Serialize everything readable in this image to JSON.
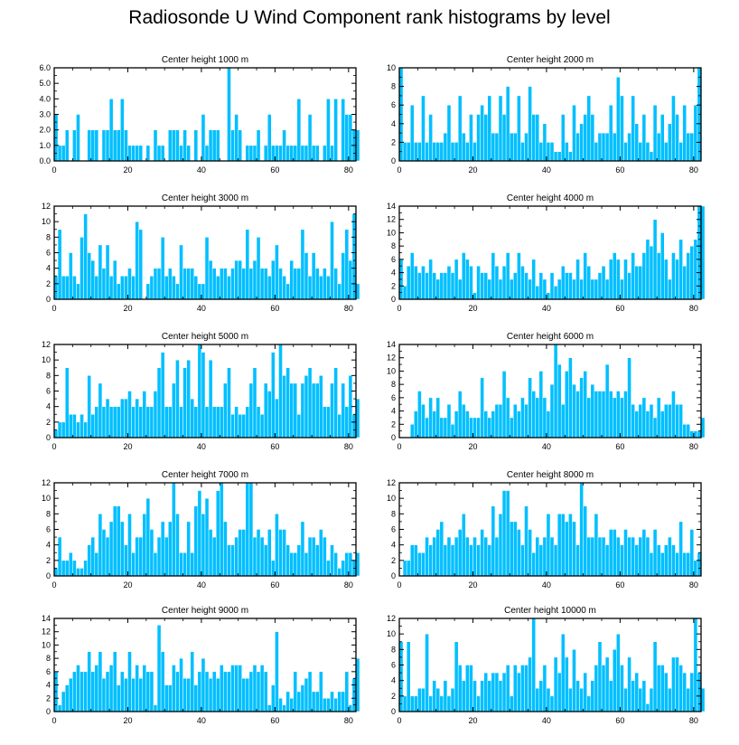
{
  "figure_title": "Radiosonde U Wind Component rank histograms by level",
  "colors": {
    "bar": "#00bfff",
    "bar_stroke": "#ffffff",
    "axis": "#000000"
  },
  "chart_data": [
    {
      "type": "bar",
      "title": "Center height 1000 m",
      "xlim": [
        0,
        82
      ],
      "ylim": [
        0,
        6
      ],
      "xticks": [
        0,
        20,
        40,
        60,
        80
      ],
      "yticks": [
        0,
        1,
        2,
        3,
        4,
        5,
        6
      ],
      "ytick_labels": [
        "0.0",
        "1.0",
        "2.0",
        "3.0",
        "4.0",
        "5.0",
        "6.0"
      ],
      "values": [
        3,
        1,
        1,
        2,
        0,
        2,
        3,
        0,
        0,
        2,
        2,
        2,
        0,
        2,
        2,
        4,
        2,
        2,
        4,
        2,
        1,
        1,
        1,
        1,
        0,
        1,
        0,
        2,
        1,
        1,
        0,
        2,
        2,
        2,
        1,
        2,
        1,
        0,
        2,
        0,
        3,
        1,
        2,
        2,
        2,
        0,
        0,
        6,
        2,
        3,
        2,
        0,
        1,
        1,
        1,
        2,
        0,
        1,
        3,
        1,
        1,
        1,
        2,
        1,
        1,
        1,
        4,
        1,
        1,
        3,
        1,
        1,
        0,
        1,
        4,
        1,
        4,
        0,
        4,
        3,
        3,
        2,
        2
      ]
    },
    {
      "type": "bar",
      "title": "Center height 2000 m",
      "xlim": [
        0,
        82
      ],
      "ylim": [
        0,
        10
      ],
      "xticks": [
        0,
        20,
        40,
        60,
        80
      ],
      "yticks": [
        0,
        2,
        4,
        6,
        8,
        10
      ],
      "ytick_labels": [
        "0",
        "2",
        "4",
        "6",
        "8",
        "10"
      ],
      "values": [
        10,
        2,
        2,
        6,
        2,
        2,
        7,
        2,
        5,
        2,
        2,
        2,
        3,
        6,
        2,
        2,
        7,
        3,
        2,
        5,
        2,
        5,
        6,
        5,
        7,
        3,
        3,
        7,
        5,
        8,
        3,
        3,
        7,
        2,
        3,
        8,
        5,
        5,
        2,
        4,
        2,
        2,
        1,
        1,
        5,
        2,
        1,
        6,
        3,
        4,
        5,
        7,
        5,
        2,
        3,
        3,
        3,
        6,
        3,
        9,
        7,
        2,
        3,
        7,
        4,
        2,
        5,
        2,
        1,
        6,
        3,
        5,
        2,
        4,
        7,
        5,
        2,
        6,
        3,
        3,
        6,
        10
      ]
    },
    {
      "type": "bar",
      "title": "Center height 3000 m",
      "xlim": [
        0,
        82
      ],
      "ylim": [
        0,
        12
      ],
      "xticks": [
        0,
        20,
        40,
        60,
        80
      ],
      "yticks": [
        0,
        2,
        4,
        6,
        8,
        10,
        12
      ],
      "ytick_labels": [
        "0",
        "2",
        "4",
        "6",
        "8",
        "10",
        "12"
      ],
      "values": [
        3,
        9,
        3,
        3,
        6,
        3,
        2,
        8,
        11,
        6,
        5,
        3,
        7,
        4,
        7,
        3,
        5,
        2,
        3,
        3,
        4,
        3,
        10,
        9,
        0,
        2,
        3,
        4,
        4,
        8,
        3,
        4,
        3,
        2,
        7,
        4,
        4,
        4,
        3,
        2,
        2,
        8,
        5,
        4,
        3,
        4,
        4,
        3,
        4,
        5,
        5,
        4,
        9,
        4,
        5,
        8,
        4,
        4,
        3,
        5,
        7,
        4,
        3,
        2,
        5,
        4,
        4,
        9,
        6,
        3,
        6,
        4,
        3,
        4,
        3,
        10,
        4,
        2,
        6,
        9,
        5,
        11,
        2
      ]
    },
    {
      "type": "bar",
      "title": "Center height 4000 m",
      "xlim": [
        0,
        82
      ],
      "ylim": [
        0,
        14
      ],
      "xticks": [
        0,
        20,
        40,
        60,
        80
      ],
      "yticks": [
        0,
        2,
        4,
        6,
        8,
        10,
        12,
        14
      ],
      "ytick_labels": [
        "0",
        "2",
        "4",
        "6",
        "8",
        "10",
        "12",
        "14"
      ],
      "values": [
        6,
        2,
        5,
        7,
        5,
        4,
        5,
        4,
        6,
        4,
        3,
        4,
        4,
        5,
        4,
        6,
        3,
        7,
        6,
        5,
        1,
        5,
        4,
        4,
        3,
        7,
        5,
        3,
        5,
        7,
        3,
        4,
        7,
        5,
        4,
        3,
        6,
        2,
        4,
        3,
        1,
        4,
        2,
        3,
        5,
        4,
        4,
        3,
        6,
        3,
        7,
        5,
        3,
        3,
        4,
        5,
        3,
        6,
        7,
        6,
        3,
        6,
        4,
        7,
        5,
        5,
        7,
        9,
        8,
        12,
        7,
        10,
        6,
        3,
        7,
        6,
        9,
        5,
        7,
        8,
        9,
        14,
        14
      ]
    },
    {
      "type": "bar",
      "title": "Center height 5000 m",
      "xlim": [
        0,
        82
      ],
      "ylim": [
        0,
        12
      ],
      "xticks": [
        0,
        20,
        40,
        60,
        80
      ],
      "yticks": [
        0,
        2,
        4,
        6,
        8,
        10,
        12
      ],
      "ytick_labels": [
        "0",
        "2",
        "4",
        "6",
        "8",
        "10",
        "12"
      ],
      "values": [
        1,
        2,
        2,
        9,
        3,
        3,
        2,
        3,
        2,
        8,
        3,
        4,
        7,
        4,
        5,
        4,
        4,
        4,
        5,
        5,
        6,
        4,
        5,
        4,
        6,
        4,
        4,
        6,
        9,
        11,
        4,
        4,
        7,
        10,
        4,
        9,
        10,
        5,
        4,
        12,
        11,
        4,
        10,
        4,
        4,
        4,
        7,
        9,
        3,
        4,
        3,
        3,
        4,
        7,
        9,
        4,
        3,
        7,
        6,
        11,
        5,
        12,
        8,
        9,
        7,
        7,
        3,
        7,
        8,
        9,
        7,
        7,
        8,
        4,
        4,
        7,
        9,
        3,
        7,
        4,
        8,
        3,
        5
      ]
    },
    {
      "type": "bar",
      "title": "Center height 6000 m",
      "xlim": [
        0,
        82
      ],
      "ylim": [
        0,
        14
      ],
      "xticks": [
        0,
        20,
        40,
        60,
        80
      ],
      "yticks": [
        0,
        2,
        4,
        6,
        8,
        10,
        12,
        14
      ],
      "ytick_labels": [
        "0",
        "2",
        "4",
        "6",
        "8",
        "10",
        "12",
        "14"
      ],
      "values": [
        0,
        0,
        0,
        2,
        4,
        7,
        5,
        3,
        6,
        4,
        6,
        3,
        3,
        5,
        2,
        4,
        7,
        5,
        4,
        3,
        3,
        3,
        9,
        4,
        3,
        4,
        5,
        5,
        10,
        6,
        3,
        5,
        4,
        6,
        5,
        9,
        7,
        6,
        10,
        6,
        4,
        8,
        14,
        11,
        5,
        10,
        12,
        8,
        7,
        9,
        10,
        6,
        8,
        7,
        7,
        7,
        11,
        7,
        6,
        7,
        6,
        7,
        12,
        5,
        4,
        5,
        6,
        4,
        5,
        3,
        6,
        4,
        5,
        5,
        7,
        5,
        5,
        2,
        2,
        1,
        1,
        1,
        3
      ]
    },
    {
      "type": "bar",
      "title": "Center height 7000 m",
      "xlim": [
        0,
        82
      ],
      "ylim": [
        0,
        12
      ],
      "xticks": [
        0,
        20,
        40,
        60,
        80
      ],
      "yticks": [
        0,
        2,
        4,
        6,
        8,
        10,
        12
      ],
      "ytick_labels": [
        "0",
        "2",
        "4",
        "6",
        "8",
        "10",
        "12"
      ],
      "values": [
        1,
        5,
        2,
        2,
        3,
        2,
        1,
        1,
        2,
        4,
        5,
        3,
        8,
        6,
        5,
        7,
        9,
        9,
        7,
        4,
        8,
        3,
        5,
        5,
        8,
        10,
        6,
        3,
        5,
        7,
        5,
        7,
        12,
        8,
        3,
        3,
        7,
        3,
        9,
        11,
        8,
        10,
        6,
        5,
        11,
        12,
        7,
        4,
        4,
        5,
        6,
        6,
        12,
        12,
        5,
        6,
        5,
        4,
        6,
        2,
        8,
        6,
        6,
        4,
        3,
        3,
        4,
        7,
        3,
        5,
        5,
        4,
        6,
        5,
        2,
        4,
        3,
        1,
        2,
        3,
        3,
        2,
        3
      ]
    },
    {
      "type": "bar",
      "title": "Center height 8000 m",
      "xlim": [
        0,
        82
      ],
      "ylim": [
        0,
        12
      ],
      "xticks": [
        0,
        20,
        40,
        60,
        80
      ],
      "yticks": [
        0,
        2,
        4,
        6,
        8,
        10,
        12
      ],
      "ytick_labels": [
        "0",
        "2",
        "4",
        "6",
        "8",
        "10",
        "12"
      ],
      "values": [
        0,
        2,
        2,
        4,
        4,
        3,
        3,
        5,
        4,
        5,
        6,
        7,
        4,
        5,
        4,
        5,
        6,
        8,
        5,
        4,
        5,
        4,
        6,
        5,
        4,
        9,
        5,
        8,
        11,
        11,
        7,
        7,
        6,
        4,
        9,
        6,
        3,
        5,
        4,
        5,
        8,
        5,
        4,
        8,
        8,
        7,
        8,
        7,
        4,
        12,
        9,
        5,
        5,
        8,
        5,
        5,
        4,
        6,
        6,
        5,
        4,
        6,
        5,
        5,
        4,
        5,
        6,
        5,
        3,
        6,
        4,
        3,
        4,
        5,
        4,
        3,
        7,
        3,
        3,
        6,
        2,
        3,
        0
      ]
    },
    {
      "type": "bar",
      "title": "Center height 9000 m",
      "xlim": [
        0,
        82
      ],
      "ylim": [
        0,
        14
      ],
      "xticks": [
        0,
        20,
        40,
        60,
        80
      ],
      "yticks": [
        0,
        2,
        4,
        6,
        8,
        10,
        12,
        14
      ],
      "ytick_labels": [
        "0",
        "2",
        "4",
        "6",
        "8",
        "10",
        "12",
        "14"
      ],
      "values": [
        6,
        1,
        3,
        4,
        5,
        6,
        7,
        6,
        6,
        9,
        6,
        7,
        9,
        5,
        6,
        7,
        9,
        4,
        6,
        5,
        9,
        5,
        7,
        5,
        7,
        6,
        6,
        1,
        13,
        9,
        4,
        4,
        7,
        6,
        8,
        5,
        5,
        9,
        4,
        6,
        8,
        6,
        5,
        6,
        5,
        7,
        6,
        6,
        7,
        7,
        7,
        5,
        5,
        6,
        7,
        6,
        7,
        6,
        1,
        4,
        12,
        2,
        1,
        3,
        2,
        6,
        3,
        4,
        5,
        6,
        3,
        3,
        6,
        2,
        2,
        3,
        2,
        3,
        3,
        6,
        1,
        5,
        8
      ]
    },
    {
      "type": "bar",
      "title": "Center height 10000 m",
      "xlim": [
        0,
        82
      ],
      "ylim": [
        0,
        12
      ],
      "xticks": [
        0,
        20,
        40,
        60,
        80
      ],
      "yticks": [
        0,
        2,
        4,
        6,
        8,
        10,
        12
      ],
      "ytick_labels": [
        "0",
        "2",
        "4",
        "6",
        "8",
        "10",
        "12"
      ],
      "values": [
        9,
        2,
        9,
        2,
        2,
        3,
        3,
        10,
        2,
        4,
        3,
        2,
        4,
        2,
        3,
        9,
        6,
        4,
        6,
        6,
        4,
        2,
        4,
        5,
        4,
        5,
        5,
        4,
        5,
        6,
        2,
        6,
        5,
        6,
        6,
        7,
        12,
        3,
        4,
        6,
        3,
        2,
        7,
        5,
        10,
        7,
        3,
        8,
        4,
        3,
        5,
        2,
        4,
        6,
        9,
        6,
        7,
        4,
        8,
        10,
        6,
        3,
        7,
        4,
        5,
        3,
        4,
        1,
        3,
        9,
        6,
        6,
        5,
        3,
        7,
        7,
        6,
        5,
        3,
        5,
        12,
        5,
        3
      ]
    }
  ]
}
